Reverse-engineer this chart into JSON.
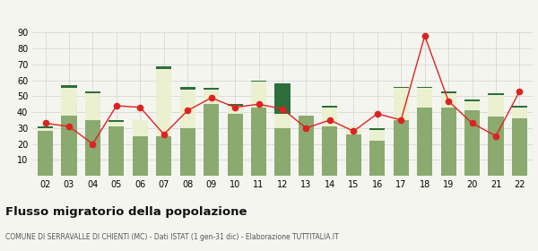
{
  "years": [
    "02",
    "03",
    "04",
    "05",
    "06",
    "07",
    "08",
    "09",
    "10",
    "11",
    "12",
    "13",
    "14",
    "15",
    "16",
    "17",
    "18",
    "19",
    "20",
    "21",
    "22"
  ],
  "iscritti_altri_comuni": [
    28,
    38,
    35,
    31,
    25,
    25,
    30,
    45,
    39,
    43,
    30,
    38,
    31,
    26,
    22,
    35,
    43,
    43,
    41,
    37,
    36
  ],
  "iscritti_estero": [
    2,
    17,
    17,
    3,
    10,
    42,
    24,
    9,
    5,
    16,
    9,
    0,
    12,
    5,
    7,
    20,
    12,
    9,
    6,
    14,
    7
  ],
  "iscritti_altri": [
    1,
    2,
    1,
    1,
    0,
    2,
    2,
    1,
    1,
    1,
    19,
    0,
    1,
    0,
    1,
    1,
    1,
    1,
    1,
    1,
    1
  ],
  "cancellati": [
    33,
    31,
    20,
    44,
    43,
    26,
    41,
    49,
    43,
    45,
    42,
    30,
    35,
    28,
    39,
    35,
    88,
    47,
    33,
    25,
    53
  ],
  "color_altri_comuni": "#8aaa70",
  "color_estero": "#eaf0d0",
  "color_altri": "#2d6e3b",
  "color_cancellati": "#dd2222",
  "color_background": "#f5f5f0",
  "color_grid": "#d0d0d0",
  "ylim": [
    0,
    90
  ],
  "yticks": [
    10,
    20,
    30,
    40,
    50,
    60,
    70,
    80,
    90
  ],
  "title": "Flusso migratorio della popolazione",
  "subtitle": "COMUNE DI SERRAVALLE DI CHIENTI (MC) - Dati ISTAT (1 gen-31 dic) - Elaborazione TUTTITALIA.IT"
}
